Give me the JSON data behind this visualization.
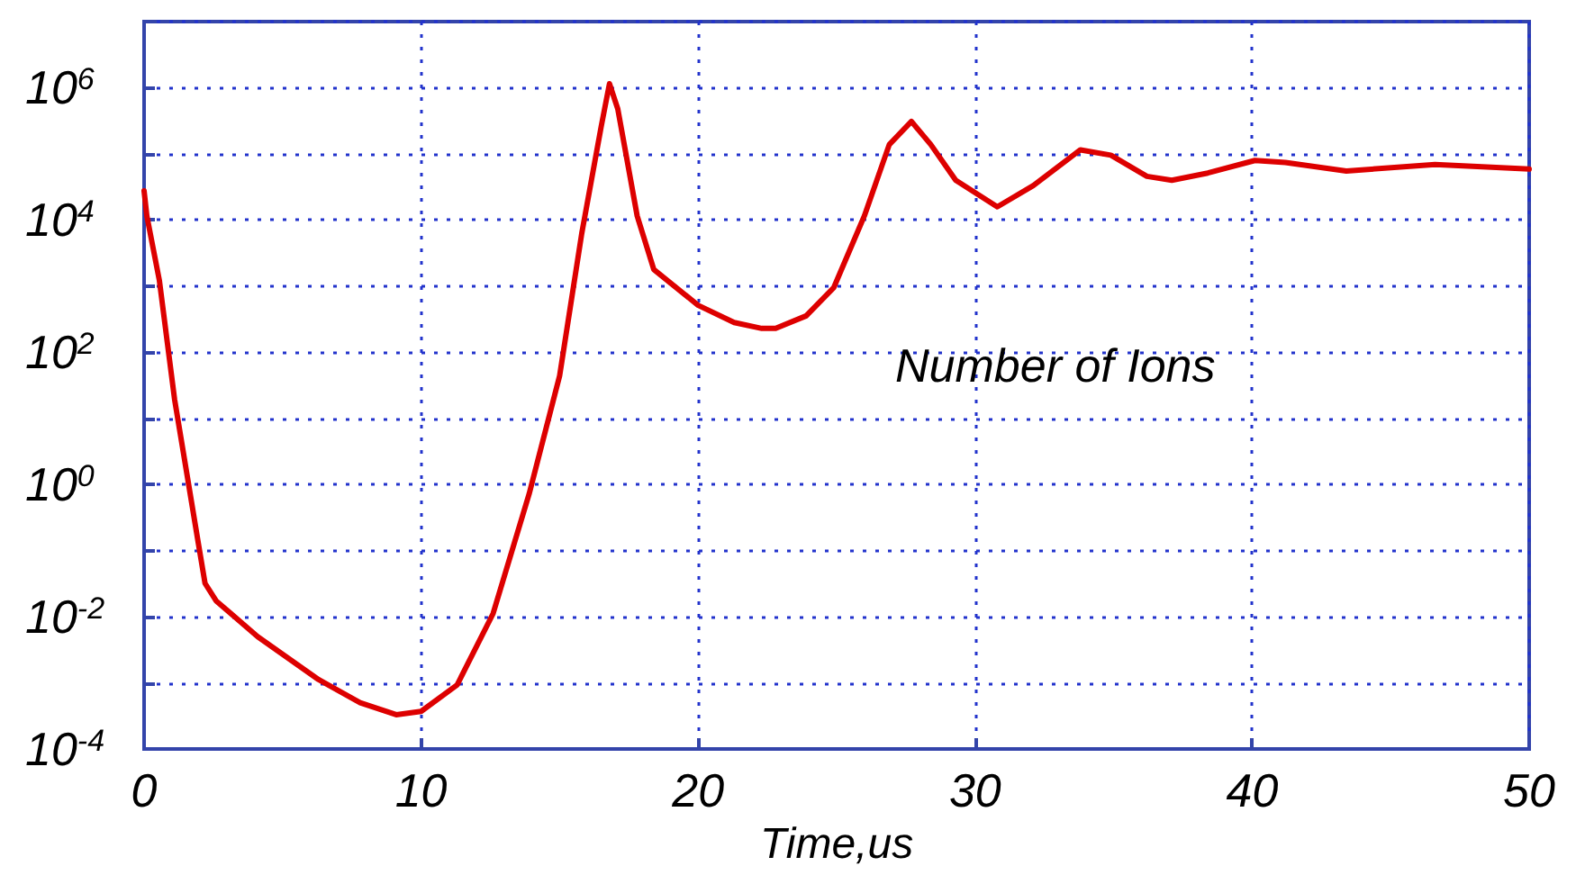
{
  "chart_data": {
    "type": "line",
    "xlabel": "Time,us",
    "annotations": [
      "Number of Ions"
    ],
    "log": "y",
    "grid": true,
    "marker": "none",
    "line_style": "solid",
    "xlim": [
      0,
      50
    ],
    "xticks": [
      0,
      10,
      20,
      30,
      40,
      50
    ],
    "ylim": [
      0.0001,
      10000000
    ],
    "yticks": [
      {
        "value": 0.0001,
        "label": "10$^{-4}$"
      },
      {
        "value": 0.001,
        "label": null
      },
      {
        "value": 0.01,
        "label": "10$^{-2}$"
      },
      {
        "value": 0.1,
        "label": null
      },
      {
        "value": 1,
        "label": "10$^{0}$"
      },
      {
        "value": 10,
        "label": null
      },
      {
        "value": 100,
        "label": "10$^{2}$"
      },
      {
        "value": 1000,
        "label": null
      },
      {
        "value": 10000,
        "label": "10$^{4}$"
      },
      {
        "value": 100000,
        "label": null
      },
      {
        "value": 1000000,
        "label": "10$^{6}$"
      },
      {
        "value": 10000000,
        "label": null
      }
    ],
    "series": [
      {
        "color": "#dd0000",
        "x": [
          0,
          0.1,
          0.55,
          1.1,
          1.95,
          2.2,
          2.6,
          4.1,
          6.3,
          7.8,
          9.1,
          10,
          11.3,
          12.6,
          13.9,
          15,
          15.8,
          16.5,
          16.8,
          17.1,
          17.8,
          18.4,
          20,
          21.3,
          22.3,
          22.8,
          23.9,
          24.9,
          26,
          26.9,
          27.7,
          28.4,
          29.3,
          30.8,
          32.1,
          33.8,
          34.9,
          36.2,
          37.1,
          38.4,
          40.1,
          41.2,
          43.4,
          46.6,
          50
        ],
        "values": [
          27500,
          11500,
          1230,
          19.5,
          0.135,
          0.032,
          0.0174,
          0.005,
          0.00112,
          0.0005,
          0.00033,
          0.00037,
          0.00093,
          0.0112,
          0.72,
          44,
          6300,
          257000,
          1150000,
          479000,
          11500,
          1780,
          513,
          282,
          229,
          229,
          355,
          955,
          11500,
          138000,
          309000,
          138000,
          39800,
          15800,
          33100,
          115000,
          95500,
          45700,
          39800,
          51300,
          79400,
          74100,
          55000,
          69200,
          58900
        ]
      }
    ]
  }
}
